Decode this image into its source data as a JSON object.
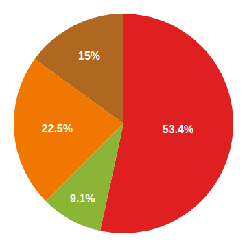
{
  "chart_data": {
    "type": "pie",
    "values": [
      53.4,
      9.1,
      22.5,
      15.0
    ],
    "value_labels": [
      "53.4%",
      "9.1%",
      "22.5%",
      "15%"
    ],
    "colors": [
      "#e02020",
      "#8ab535",
      "#f07800",
      "#b06820"
    ],
    "data_labels": true
  }
}
